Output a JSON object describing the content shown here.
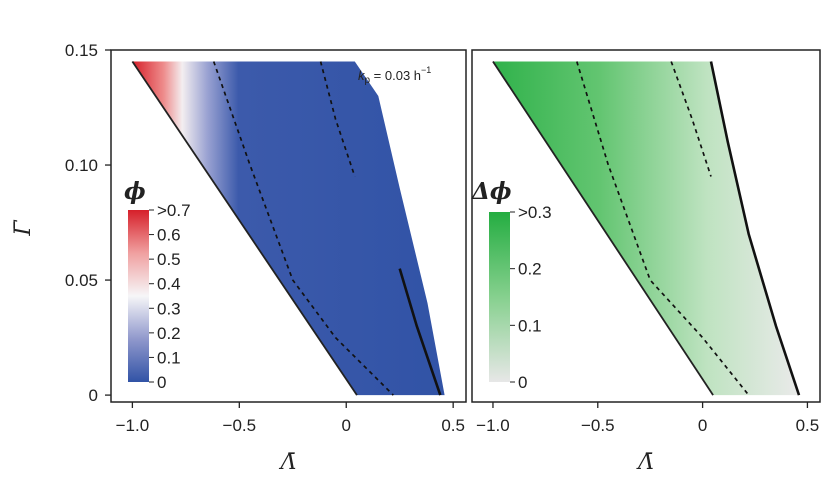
{
  "chart_data": [
    {
      "type": "heatmap",
      "panel": "left",
      "xlabel": "Λ̄",
      "ylabel": "Γ̄",
      "xlim": [
        -1.1,
        0.56
      ],
      "ylim": [
        -0.003,
        0.15
      ],
      "xticks": [
        -1.0,
        -0.5,
        0,
        0.5
      ],
      "xtick_labels": [
        "−1.0",
        "−0.5",
        "0",
        "0.5"
      ],
      "yticks": [
        0,
        0.05,
        0.1,
        0.15
      ],
      "ytick_labels": [
        "0",
        "0.05",
        "0.10",
        "0.15"
      ],
      "annotation": {
        "k": "k",
        "sub": "p",
        "rest": " = 0.03 h",
        "sup": "−1"
      },
      "colorbar": {
        "title": "ϕ",
        "labels": [
          ">0.7",
          "0.6",
          "0.5",
          "0.4",
          "0.3",
          "0.2",
          "0.1",
          "0"
        ],
        "values": [
          0.7,
          0.6,
          0.5,
          0.4,
          0.3,
          0.2,
          0.1,
          0
        ],
        "colors": [
          "#d6202a",
          "#f0a0a0",
          "#f6f6f8",
          "#9098cc",
          "#3153a6"
        ],
        "stops": [
          0,
          0.25,
          0.5,
          0.75,
          1
        ]
      },
      "region": {
        "left_boundary": [
          [
            -1.0,
            0.145
          ],
          [
            0.05,
            0.0
          ]
        ],
        "right_boundary": [
          [
            0.04,
            0.145
          ],
          [
            0.15,
            0.13
          ],
          [
            0.25,
            0.09
          ],
          [
            0.38,
            0.04
          ],
          [
            0.46,
            0.0
          ]
        ]
      },
      "dashed_contours": [
        [
          [
            -0.62,
            0.145
          ],
          [
            -0.45,
            0.1
          ],
          [
            -0.25,
            0.05
          ],
          [
            -0.05,
            0.025
          ],
          [
            0.22,
            0.0
          ]
        ],
        [
          [
            -0.12,
            0.145
          ],
          [
            -0.05,
            0.12
          ],
          [
            0.04,
            0.095
          ]
        ]
      ],
      "solid_boundary": [
        [
          0.25,
          0.055
        ],
        [
          0.33,
          0.03
        ],
        [
          0.44,
          0.0
        ]
      ]
    },
    {
      "type": "heatmap",
      "panel": "right",
      "xlabel": "Λ̄",
      "xlim": [
        -1.1,
        0.56
      ],
      "ylim": [
        -0.003,
        0.15
      ],
      "xticks": [
        -1.0,
        -0.5,
        0,
        0.5
      ],
      "xtick_labels": [
        "−1.0",
        "−0.5",
        "0",
        "0.5"
      ],
      "colorbar": {
        "title": "Δϕ",
        "labels": [
          ">0.3",
          "0.2",
          "0.1",
          "0"
        ],
        "values": [
          0.3,
          0.2,
          0.1,
          0
        ],
        "colors": [
          "#24ad41",
          "#86d08e",
          "#e7e7e7"
        ],
        "stops": [
          0,
          0.5,
          1
        ]
      },
      "region": {
        "left_boundary": [
          [
            -1.0,
            0.145
          ],
          [
            0.05,
            0.0
          ]
        ],
        "right_boundary": [
          [
            0.04,
            0.145
          ],
          [
            0.12,
            0.11
          ],
          [
            0.22,
            0.07
          ],
          [
            0.35,
            0.03
          ],
          [
            0.46,
            0.0
          ]
        ]
      },
      "dashed_contours": [
        [
          [
            -0.6,
            0.145
          ],
          [
            -0.45,
            0.1
          ],
          [
            -0.25,
            0.05
          ],
          [
            0.0,
            0.025
          ],
          [
            0.22,
            0.0
          ]
        ],
        [
          [
            -0.15,
            0.145
          ],
          [
            -0.05,
            0.12
          ],
          [
            0.04,
            0.095
          ]
        ]
      ],
      "solid_boundary": [
        [
          0.04,
          0.145
        ],
        [
          0.12,
          0.11
        ],
        [
          0.22,
          0.07
        ],
        [
          0.35,
          0.03
        ],
        [
          0.46,
          0.0
        ]
      ]
    }
  ]
}
